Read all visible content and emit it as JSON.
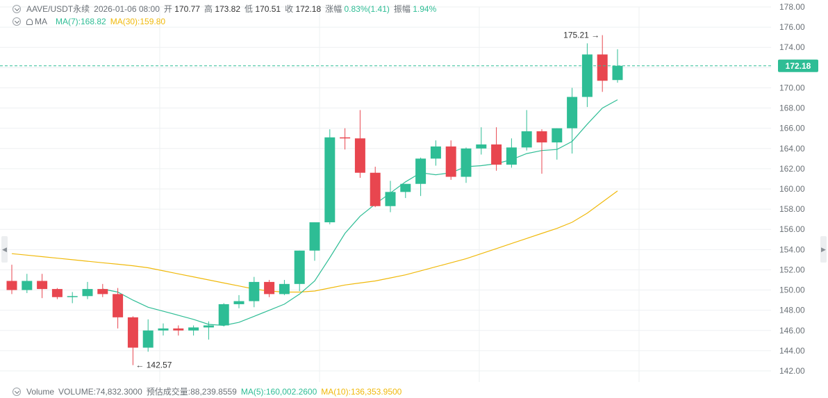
{
  "header": {
    "symbol": "AAVE/USDT永续",
    "datetime": "2026-01-06 08:00",
    "open_label": "开",
    "open": "170.77",
    "high_label": "高",
    "high": "173.82",
    "low_label": "低",
    "low": "170.51",
    "close_label": "收",
    "close": "172.18",
    "change_label": "涨幅",
    "change": "0.83%(1.41)",
    "amplitude_label": "振幅",
    "amplitude": "1.94%"
  },
  "ma_legend": {
    "label": "MA",
    "ma7": "MA(7):168.82",
    "ma30": "MA(30):159.80"
  },
  "volume_legend": {
    "label": "Volume",
    "volume": "VOLUME:74,832.3000",
    "estimated": "预估成交量:88,239.8559",
    "ma5": "MA(5):160,002.2600",
    "ma10": "MA(10):136,353.9500"
  },
  "colors": {
    "up": "#2ebd95",
    "down": "#e8464f",
    "ma7": "#2ebd95",
    "ma30": "#f0b90b",
    "grid": "#eef0f2",
    "axis_text": "#6b7177"
  },
  "chart_data": {
    "type": "candlestick",
    "current_price": "172.18",
    "max_label": "175.21",
    "min_label": "142.57",
    "ylim": [
      141,
      178.8
    ],
    "y_ticks": [
      "142.00",
      "144.00",
      "146.00",
      "148.00",
      "150.00",
      "152.00",
      "154.00",
      "156.00",
      "158.00",
      "160.00",
      "162.00",
      "164.00",
      "166.00",
      "168.00",
      "170.00",
      "172.00",
      "174.00",
      "176.00",
      "178.00"
    ],
    "candles": [
      [
        150.9,
        152.5,
        149.6,
        150.0
      ],
      [
        150.0,
        151.6,
        149.7,
        150.9
      ],
      [
        150.9,
        151.6,
        149.2,
        150.1
      ],
      [
        150.1,
        150.2,
        149.1,
        149.3
      ],
      [
        149.3,
        149.8,
        148.7,
        149.4
      ],
      [
        149.4,
        150.8,
        149.1,
        150.1
      ],
      [
        150.1,
        150.6,
        149.3,
        149.6
      ],
      [
        149.6,
        150.2,
        146.2,
        147.3
      ],
      [
        147.3,
        147.4,
        142.57,
        144.3
      ],
      [
        144.3,
        147.1,
        143.9,
        146.0
      ],
      [
        146.0,
        146.7,
        145.5,
        146.2
      ],
      [
        146.2,
        146.5,
        145.5,
        146.0
      ],
      [
        146.0,
        146.5,
        145.5,
        146.3
      ],
      [
        146.3,
        146.9,
        145.1,
        146.5
      ],
      [
        146.5,
        148.7,
        146.4,
        148.6
      ],
      [
        148.6,
        149.5,
        148.2,
        148.9
      ],
      [
        148.9,
        151.3,
        148.3,
        150.8
      ],
      [
        150.8,
        151.0,
        149.3,
        149.6
      ],
      [
        149.6,
        151.0,
        149.5,
        150.6
      ],
      [
        150.6,
        153.9,
        149.9,
        153.9
      ],
      [
        153.9,
        156.7,
        152.9,
        156.7
      ],
      [
        156.7,
        165.9,
        156.5,
        165.1
      ],
      [
        165.1,
        166.0,
        163.9,
        165.0
      ],
      [
        165.0,
        167.8,
        161.1,
        161.6
      ],
      [
        161.6,
        162.2,
        158.2,
        158.3
      ],
      [
        158.3,
        160.8,
        157.7,
        159.7
      ],
      [
        159.7,
        160.5,
        159.1,
        160.5
      ],
      [
        160.5,
        163.1,
        159.3,
        163.0
      ],
      [
        163.0,
        164.8,
        162.3,
        164.2
      ],
      [
        164.2,
        164.8,
        160.9,
        161.2
      ],
      [
        161.2,
        164.1,
        160.6,
        164.0
      ],
      [
        164.0,
        166.1,
        163.4,
        164.4
      ],
      [
        164.4,
        166.1,
        161.8,
        162.4
      ],
      [
        162.4,
        165.0,
        162.1,
        164.1
      ],
      [
        164.1,
        167.8,
        163.8,
        165.7
      ],
      [
        165.7,
        165.9,
        161.5,
        164.6
      ],
      [
        164.6,
        166.0,
        162.9,
        166.0
      ],
      [
        166.0,
        170.0,
        163.5,
        169.1
      ],
      [
        169.1,
        174.4,
        168.1,
        173.3
      ],
      [
        173.3,
        175.21,
        169.6,
        170.7
      ],
      [
        170.77,
        173.82,
        170.51,
        172.18
      ]
    ],
    "ma7": [
      null,
      null,
      null,
      null,
      null,
      null,
      150.1,
      149.8,
      149.0,
      148.3,
      147.9,
      147.5,
      147.1,
      146.6,
      146.5,
      146.8,
      147.4,
      148.0,
      148.6,
      149.6,
      150.9,
      153.2,
      155.6,
      157.3,
      158.5,
      159.6,
      160.7,
      161.6,
      161.4,
      161.6,
      162.2,
      162.3,
      162.5,
      162.9,
      163.5,
      163.8,
      163.9,
      164.7,
      166.4,
      168.0,
      168.82
    ],
    "ma30": [
      153.6,
      153.45,
      153.3,
      153.15,
      153.0,
      152.85,
      152.7,
      152.55,
      152.4,
      152.2,
      151.9,
      151.6,
      151.3,
      151.0,
      150.7,
      150.4,
      150.1,
      149.9,
      149.8,
      149.8,
      149.9,
      150.2,
      150.5,
      150.7,
      150.9,
      151.2,
      151.5,
      151.9,
      152.3,
      152.7,
      153.1,
      153.6,
      154.1,
      154.6,
      155.1,
      155.6,
      156.1,
      156.7,
      157.6,
      158.7,
      159.8
    ]
  }
}
